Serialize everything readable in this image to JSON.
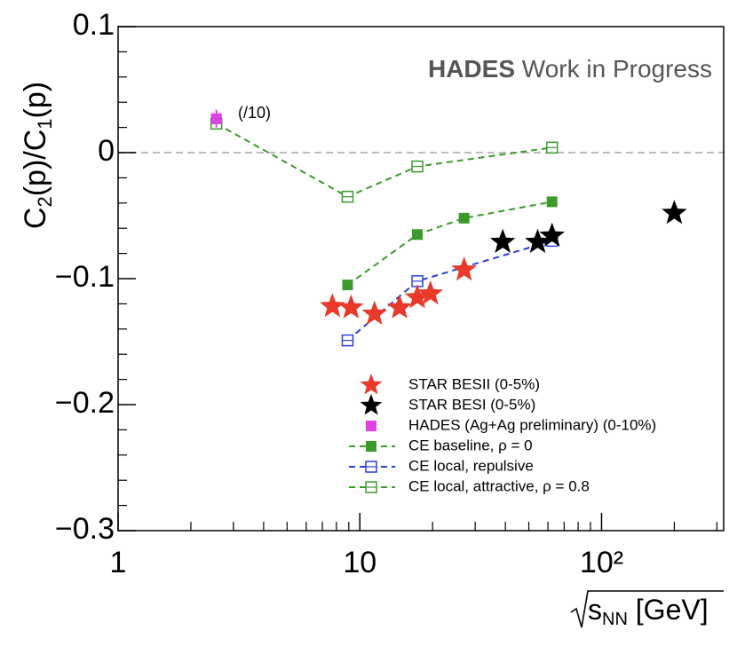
{
  "chart_data": {
    "type": "scatter",
    "xlog": true,
    "xlim": [
      1,
      320
    ],
    "ylim": [
      -0.3,
      0.1
    ],
    "xticks": [
      1,
      10,
      {
        "value": 100,
        "label": "10²"
      }
    ],
    "xminor_ticks": [
      2,
      3,
      4,
      5,
      6,
      7,
      8,
      9,
      20,
      30,
      40,
      50,
      60,
      70,
      80,
      90,
      200,
      300
    ],
    "yticks": [
      {
        "value": -0.3,
        "label": "−0.3"
      },
      {
        "value": -0.2,
        "label": "−0.2"
      },
      {
        "value": -0.1,
        "label": "−0.1"
      },
      0,
      0.1
    ],
    "yminor_ticks": [
      -0.28,
      -0.26,
      -0.24,
      -0.22,
      -0.18,
      -0.16,
      -0.14,
      -0.12,
      -0.08,
      -0.06,
      -0.04,
      -0.02,
      0.02,
      0.04,
      0.06,
      0.08
    ],
    "hline": 0,
    "y_label": [
      "C",
      "2",
      "(p)/C",
      "1",
      "(p)"
    ],
    "x_label": [
      "s",
      "NN",
      " [GeV]"
    ],
    "watermark": [
      "HADES",
      " Work in Progress"
    ],
    "annotation": "(/10)",
    "series": [
      {
        "name": "STAR BESII (0-5%)",
        "color": "#e8392a",
        "marker": "star",
        "line": "none",
        "x": [
          7.7,
          9.2,
          11.5,
          14.6,
          17.3,
          19.6,
          27
        ],
        "values": [
          -0.122,
          -0.123,
          -0.128,
          -0.123,
          -0.115,
          -0.112,
          -0.093
        ]
      },
      {
        "name": "STAR BESI (0-5%)",
        "color": "#000000",
        "marker": "star",
        "line": "none",
        "x": [
          39,
          54.4,
          62.4,
          200
        ],
        "values": [
          -0.071,
          -0.071,
          -0.066,
          -0.048
        ]
      },
      {
        "name": "HADES (Ag+Ag preliminary) (0-10%)",
        "color": "#e040e8",
        "marker": "square",
        "line": "none",
        "x": [
          2.55
        ],
        "values": [
          0.027
        ],
        "errors": [
          0.007
        ]
      },
      {
        "name": "CE baseline,   ρ = 0",
        "color": "#3a9a2a",
        "marker": "square",
        "line": "dashed",
        "x": [
          8.9,
          17.3,
          27,
          62.4
        ],
        "values": [
          -0.105,
          -0.065,
          -0.052,
          -0.039
        ]
      },
      {
        "name": "CE local, repulsive",
        "color": "#2a3ee0",
        "marker": "open-square",
        "line": "dashed",
        "x": [
          8.9,
          17.3,
          62.4
        ],
        "values": [
          -0.149,
          -0.102,
          -0.07
        ]
      },
      {
        "name": "CE local, attractive,   ρ = 0.8",
        "color": "#3a9a2a",
        "marker": "open-square",
        "line": "dashed",
        "x": [
          2.55,
          8.9,
          17.3,
          62.4
        ],
        "values": [
          0.023,
          -0.035,
          -0.011,
          0.004
        ]
      }
    ]
  }
}
